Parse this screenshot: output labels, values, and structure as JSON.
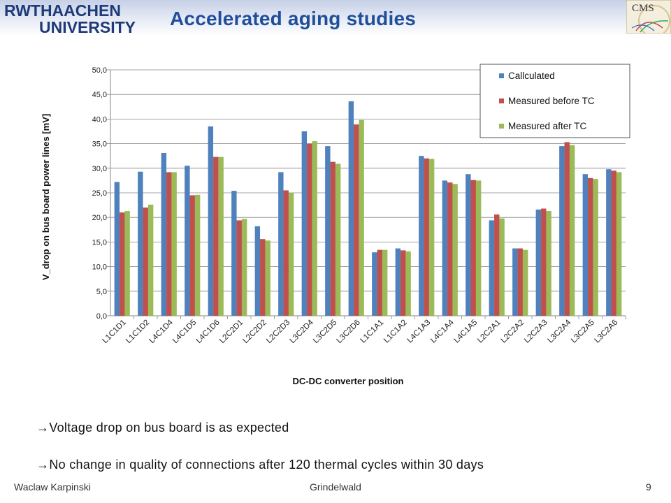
{
  "header": {
    "logo_line1": "RWTHAACHEN",
    "logo_line2": "UNIVERSITY",
    "title": "Accelerated aging studies",
    "cms_logo": "CMS"
  },
  "chart_data": {
    "type": "bar",
    "title": "",
    "xlabel": "DC-DC converter position",
    "ylabel": "V_drop on bus board power lines [mV]",
    "ylim": [
      0,
      50
    ],
    "yticks": [
      "0,0",
      "5,0",
      "10,0",
      "15,0",
      "20,0",
      "25,0",
      "30,0",
      "35,0",
      "40,0",
      "45,0",
      "50,0"
    ],
    "grid": true,
    "legend_position": "top-right",
    "categories": [
      "L1C1D1",
      "L1C1D2",
      "L4C1D4",
      "L4C1D5",
      "L4C1D6",
      "L2C2D1",
      "L2C2D2",
      "L2C2D3",
      "L3C2D4",
      "L3C2D5",
      "L3C2D6",
      "L1C1A1",
      "L1C1A2",
      "L4C1A3",
      "L4C1A4",
      "L4C1A5",
      "L2C2A1",
      "L2C2A2",
      "L2C2A3",
      "L3C2A4",
      "L3C2A5",
      "L3C2A6"
    ],
    "series": [
      {
        "name": "Callculated",
        "color": "#4f81bd",
        "values": [
          27.2,
          29.3,
          33.1,
          30.5,
          38.5,
          25.4,
          18.2,
          29.2,
          37.5,
          34.5,
          43.6,
          12.9,
          13.7,
          32.5,
          27.5,
          28.8,
          19.4,
          13.7,
          21.6,
          34.5,
          28.8,
          29.8
        ]
      },
      {
        "name": "Measured before TC",
        "color": "#c0504d",
        "values": [
          21.0,
          22.0,
          29.2,
          24.5,
          32.3,
          19.4,
          15.6,
          25.5,
          35.0,
          31.3,
          38.9,
          13.4,
          13.3,
          32.0,
          27.1,
          27.6,
          20.6,
          13.7,
          21.8,
          35.3,
          28.0,
          29.5
        ]
      },
      {
        "name": "Measured after TC",
        "color": "#9bbb59",
        "values": [
          21.3,
          22.6,
          29.2,
          24.6,
          32.3,
          19.7,
          15.3,
          25.0,
          35.5,
          30.9,
          39.8,
          13.4,
          13.1,
          31.9,
          26.8,
          27.5,
          19.8,
          13.4,
          21.3,
          34.7,
          27.8,
          29.2
        ]
      }
    ]
  },
  "bullets": [
    {
      "arrow": "→",
      "text": "Voltage drop on bus board is as expected"
    },
    {
      "arrow": "→",
      "text": "No change in quality of connections after 120 thermal cycles within 30 days"
    }
  ],
  "footer": {
    "author": "Waclaw Karpinski",
    "location": "Grindelwald",
    "page": "9"
  }
}
